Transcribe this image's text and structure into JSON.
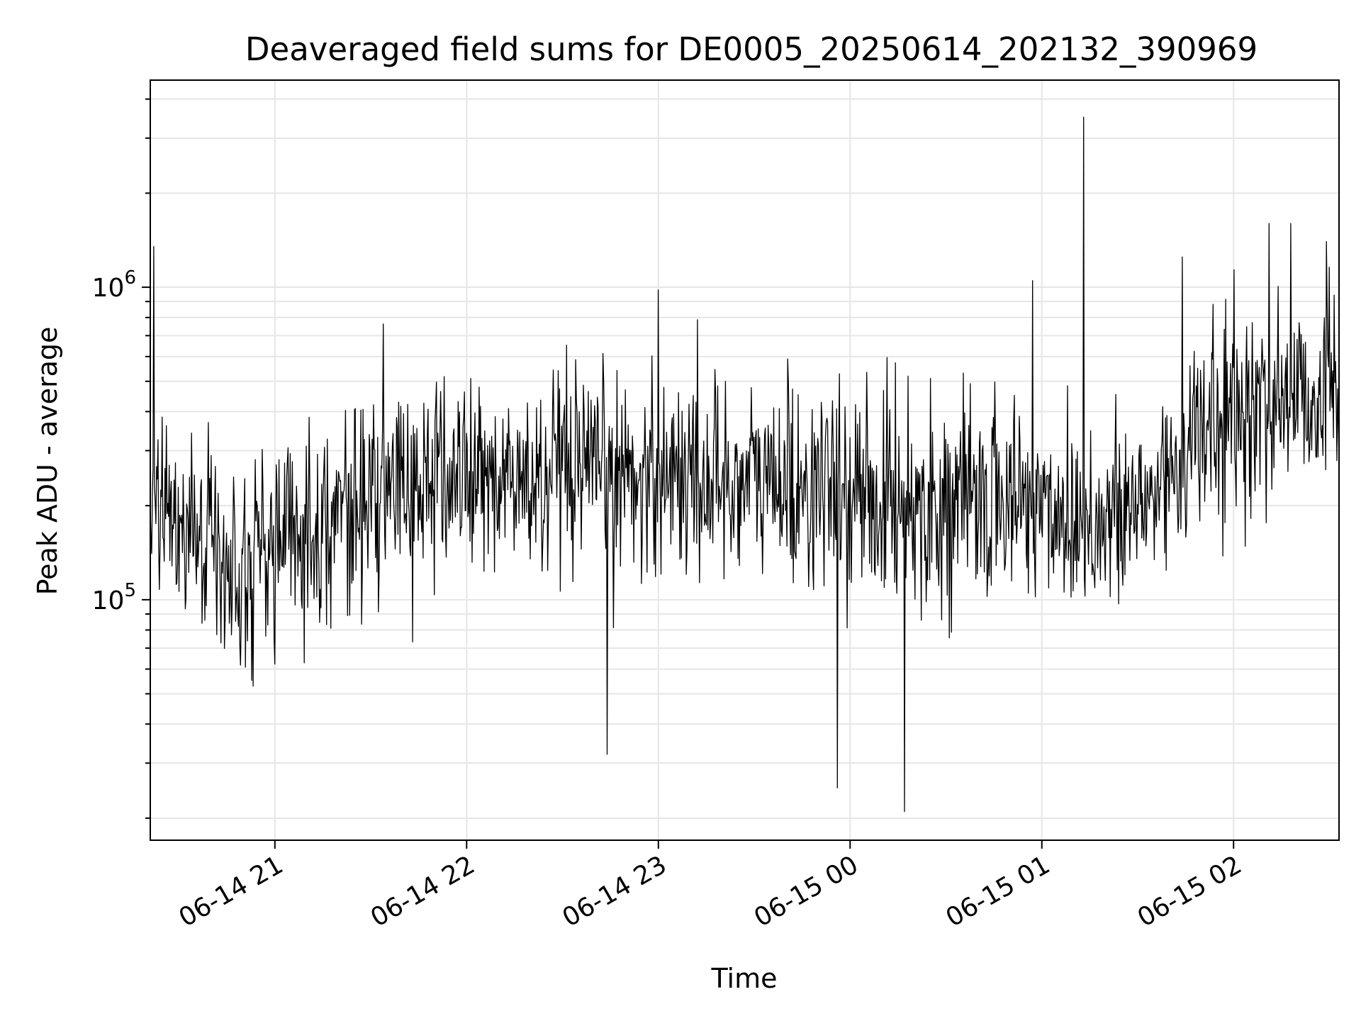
{
  "chart_data": {
    "type": "line",
    "title": "Deaveraged field sums for DE0005_20250614_202132_390969",
    "xlabel": "Time",
    "ylabel": "Peak ADU - average",
    "y_scale": "log",
    "grid": true,
    "line_color": "#000000",
    "grid_color": "#e6e6e6",
    "x_range": [
      "2025-06-14 20:21",
      "2025-06-15 02:33"
    ],
    "ylim": [
      17000,
      4600000
    ],
    "x_ticks": [
      {
        "time": "2025-06-14 21:00",
        "label": "06-14 21"
      },
      {
        "time": "2025-06-14 22:00",
        "label": "06-14 22"
      },
      {
        "time": "2025-06-14 23:00",
        "label": "06-14 23"
      },
      {
        "time": "2025-06-15 00:00",
        "label": "06-15 00"
      },
      {
        "time": "2025-06-15 01:00",
        "label": "06-15 01"
      },
      {
        "time": "2025-06-15 02:00",
        "label": "06-15 02"
      }
    ],
    "y_ticks": [
      {
        "value": 100000,
        "base": "10",
        "exp": "5"
      },
      {
        "value": 1000000,
        "base": "10",
        "exp": "6"
      }
    ],
    "series": [
      {
        "points": [
          {
            "t": "2025-06-14 20:21",
            "v": 220000
          },
          {
            "t": "2025-06-14 20:30",
            "v": 170000
          },
          {
            "t": "2025-06-14 20:40",
            "v": 150000
          },
          {
            "t": "2025-06-14 20:50",
            "v": 130000
          },
          {
            "t": "2025-06-14 21:00",
            "v": 150000
          },
          {
            "t": "2025-06-14 21:10",
            "v": 170000
          },
          {
            "t": "2025-06-14 21:20",
            "v": 190000
          },
          {
            "t": "2025-06-14 21:30",
            "v": 210000
          },
          {
            "t": "2025-06-14 21:40",
            "v": 230000
          },
          {
            "t": "2025-06-14 21:50",
            "v": 240000
          },
          {
            "t": "2025-06-14 22:00",
            "v": 250000
          },
          {
            "t": "2025-06-14 22:10",
            "v": 240000
          },
          {
            "t": "2025-06-14 22:20",
            "v": 230000
          },
          {
            "t": "2025-06-14 22:30",
            "v": 240000
          },
          {
            "t": "2025-06-14 22:40",
            "v": 240000
          },
          {
            "t": "2025-06-14 22:50",
            "v": 250000
          },
          {
            "t": "2025-06-14 23:00",
            "v": 260000
          },
          {
            "t": "2025-06-14 23:10",
            "v": 250000
          },
          {
            "t": "2025-06-14 23:20",
            "v": 240000
          },
          {
            "t": "2025-06-14 23:30",
            "v": 240000
          },
          {
            "t": "2025-06-14 23:40",
            "v": 235000
          },
          {
            "t": "2025-06-14 23:50",
            "v": 225000
          },
          {
            "t": "2025-06-15 00:00",
            "v": 215000
          },
          {
            "t": "2025-06-15 00:10",
            "v": 210000
          },
          {
            "t": "2025-06-15 00:20",
            "v": 205000
          },
          {
            "t": "2025-06-15 00:30",
            "v": 200000
          },
          {
            "t": "2025-06-15 00:40",
            "v": 205000
          },
          {
            "t": "2025-06-15 00:50",
            "v": 210000
          },
          {
            "t": "2025-06-15 01:00",
            "v": 200000
          },
          {
            "t": "2025-06-15 01:10",
            "v": 185000
          },
          {
            "t": "2025-06-15 01:20",
            "v": 175000
          },
          {
            "t": "2025-06-15 01:30",
            "v": 190000
          },
          {
            "t": "2025-06-15 01:40",
            "v": 260000
          },
          {
            "t": "2025-06-15 01:50",
            "v": 340000
          },
          {
            "t": "2025-06-15 02:00",
            "v": 380000
          },
          {
            "t": "2025-06-15 02:10",
            "v": 420000
          },
          {
            "t": "2025-06-15 02:20",
            "v": 450000
          },
          {
            "t": "2025-06-15 02:33",
            "v": 480000
          }
        ],
        "spikes": [
          {
            "t": "2025-06-14 20:22",
            "v": 1350000
          },
          {
            "t": "2025-06-14 22:44",
            "v": 32000
          },
          {
            "t": "2025-06-14 23:00",
            "v": 980000
          },
          {
            "t": "2025-06-14 23:56",
            "v": 25000
          },
          {
            "t": "2025-06-15 00:17",
            "v": 21000
          },
          {
            "t": "2025-06-15 00:57",
            "v": 1050000
          },
          {
            "t": "2025-06-15 01:13",
            "v": 3500000
          },
          {
            "t": "2025-06-15 01:44",
            "v": 1250000
          },
          {
            "t": "2025-06-15 02:11",
            "v": 1600000
          },
          {
            "t": "2025-06-15 02:18",
            "v": 1600000
          },
          {
            "t": "2025-06-15 02:29",
            "v": 1400000
          }
        ]
      }
    ]
  }
}
